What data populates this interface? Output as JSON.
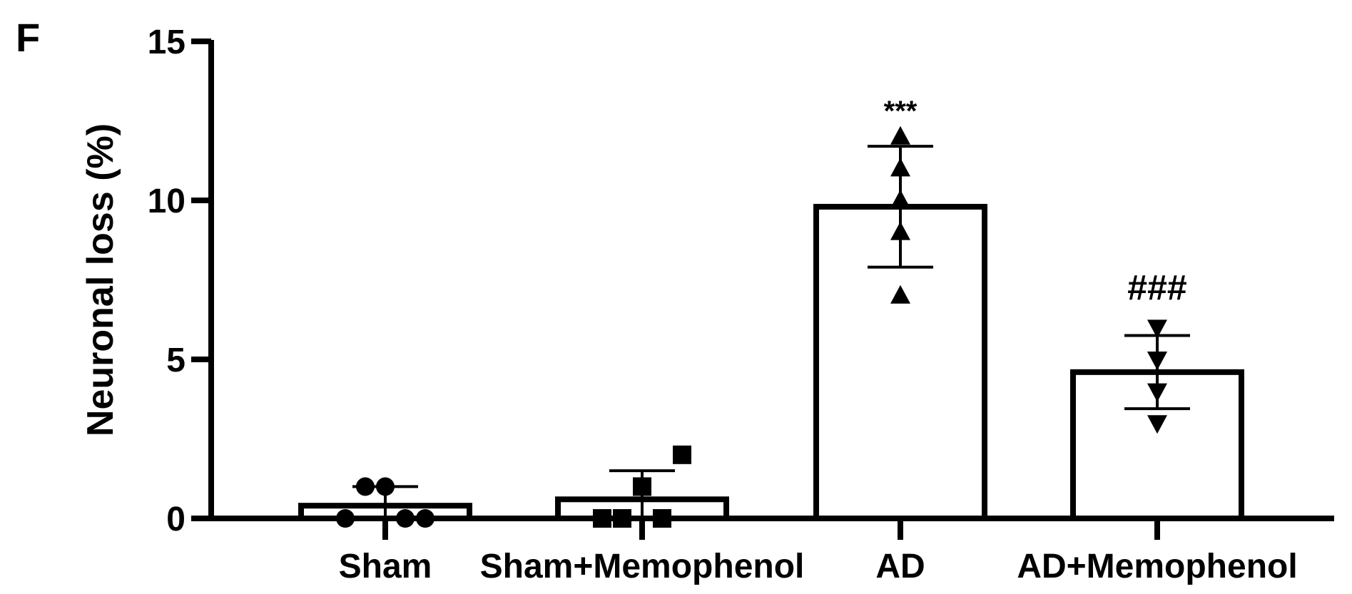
{
  "panel_label": "F",
  "chart_data": {
    "type": "bar",
    "title": "",
    "xlabel": "",
    "ylabel": "Neuronal loss (%)",
    "ylim": [
      0,
      15
    ],
    "yticks": [
      0,
      5,
      10,
      15
    ],
    "grid": false,
    "categories": [
      "Sham",
      "Sham+Memophenol",
      "AD",
      "AD+Memophenol"
    ],
    "values": [
      0.4,
      0.6,
      9.8,
      4.6
    ],
    "error": [
      0.6,
      0.9,
      1.9,
      1.15
    ],
    "markers": [
      "circle",
      "square",
      "triangle-up",
      "triangle-down"
    ],
    "points": [
      [
        0,
        1,
        1,
        0,
        0
      ],
      [
        0,
        0,
        1,
        0,
        2
      ],
      [
        7,
        9,
        10,
        11,
        12
      ],
      [
        3,
        4,
        5,
        5,
        6
      ]
    ],
    "annotations": [
      "",
      "",
      "***",
      "###"
    ],
    "bar_color": "#ffffff",
    "edge_color": "#000000"
  }
}
